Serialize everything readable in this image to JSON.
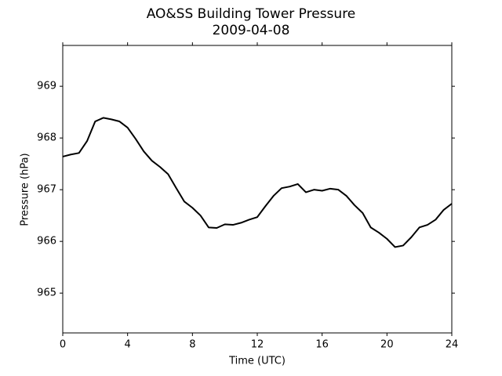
{
  "chart_data": {
    "type": "line",
    "title": "AO&SS Building Tower Pressure",
    "subtitle": "2009-04-08",
    "x_label": "Time (UTC)",
    "y_label": "Pressure (hPa)",
    "x": [
      0,
      0.5,
      1,
      1.5,
      2,
      2.5,
      3,
      3.5,
      4,
      4.5,
      5,
      5.5,
      6,
      6.5,
      7,
      7.5,
      8,
      8.5,
      9,
      9.5,
      10,
      10.5,
      11,
      11.5,
      12,
      12.5,
      13,
      13.5,
      14,
      14.5,
      15,
      15.5,
      16,
      16.5,
      17,
      17.5,
      18,
      18.5,
      19,
      19.5,
      20,
      20.5,
      21,
      21.5,
      22,
      22.5,
      23,
      23.5,
      24
    ],
    "values": [
      967.64,
      967.68,
      967.71,
      967.94,
      968.32,
      968.39,
      968.36,
      968.32,
      968.2,
      967.98,
      967.74,
      967.56,
      967.44,
      967.3,
      967.03,
      966.77,
      966.65,
      966.5,
      966.27,
      966.26,
      966.33,
      966.32,
      966.36,
      966.42,
      966.47,
      966.68,
      966.88,
      967.03,
      967.06,
      967.11,
      966.95,
      967,
      966.98,
      967.02,
      967,
      966.88,
      966.7,
      966.55,
      966.27,
      966.17,
      966.05,
      965.89,
      965.92,
      966.08,
      966.27,
      966.32,
      966.42,
      966.61,
      966.73
    ],
    "color": "#000000",
    "xlim": [
      0,
      24
    ],
    "xticks": [
      0,
      4,
      8,
      12,
      16,
      20,
      24
    ],
    "ylim": [
      964.23,
      969.79
    ],
    "yticks": [
      965,
      966,
      967,
      968,
      969
    ],
    "grid": false
  }
}
